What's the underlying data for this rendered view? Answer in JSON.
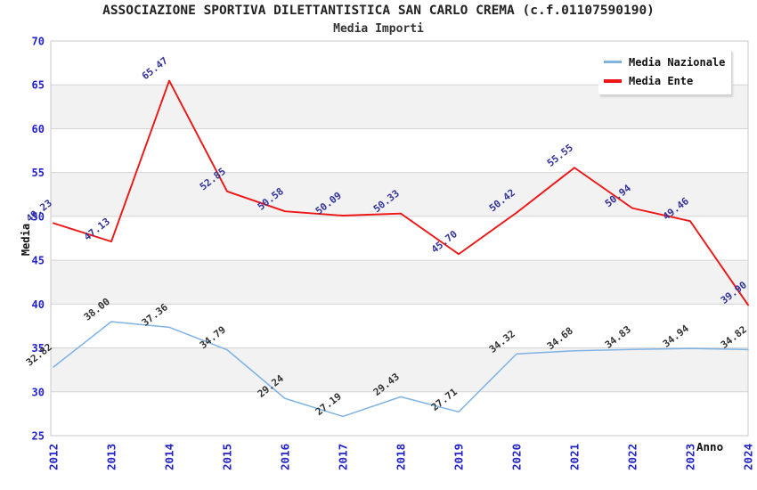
{
  "header": {
    "title": "ASSOCIAZIONE SPORTIVA DILETTANTISTICA SAN CARLO CREMA (c.f.01107590190)",
    "subtitle": "Media Importi"
  },
  "legend": {
    "position": "top-right",
    "items": [
      {
        "label": "Media Nazionale",
        "color": "#7fb2e5",
        "thickness": 3
      },
      {
        "label": "Media Ente",
        "color": "#ee1515",
        "thickness": 4
      }
    ]
  },
  "axes": {
    "y_title": "Media",
    "x_title": "Anno",
    "y_ticks": [
      25,
      30,
      35,
      40,
      45,
      50,
      55,
      60,
      65,
      70
    ],
    "x_ticks": [
      "2012",
      "2013",
      "2014",
      "2015",
      "2016",
      "2017",
      "2018",
      "2019",
      "2020",
      "2021",
      "2022",
      "2023",
      "2024"
    ],
    "tick_label_color": "#2222cc"
  },
  "colors": {
    "background": "#ffffff",
    "band_fill": "#f2f2f2",
    "gridline": "#d4d4d4",
    "plot_border": "#c9c9c9",
    "title_text": "#222222"
  },
  "chart_data": {
    "type": "line",
    "title": "ASSOCIAZIONE SPORTIVA DILETTANTISTICA SAN CARLO CREMA (c.f.01107590190)",
    "subtitle": "Media Importi",
    "xlabel": "Anno",
    "ylabel": "Media",
    "x": [
      2012,
      2013,
      2014,
      2015,
      2016,
      2017,
      2018,
      2019,
      2020,
      2021,
      2022,
      2023,
      2024
    ],
    "ylim": [
      25,
      70
    ],
    "y_tick_step": 5,
    "grid": true,
    "band_fill_ranges": [
      [
        30,
        35
      ],
      [
        40,
        45
      ],
      [
        50,
        55
      ],
      [
        60,
        65
      ]
    ],
    "legend_position": "top-right",
    "series": [
      {
        "name": "Media Nazionale",
        "color": "#7fb2e5",
        "line_width": 1.5,
        "label_color": "#333333",
        "values": [
          32.82,
          38.0,
          37.36,
          34.79,
          29.24,
          27.19,
          29.43,
          27.71,
          34.32,
          34.68,
          34.83,
          34.94,
          34.82
        ]
      },
      {
        "name": "Media Ente",
        "color": "#ee1515",
        "line_width": 1.9,
        "label_color": "#333399",
        "values": [
          49.23,
          47.13,
          65.47,
          52.85,
          50.58,
          50.09,
          50.33,
          45.7,
          50.42,
          55.55,
          50.94,
          49.46,
          39.9
        ]
      }
    ]
  }
}
